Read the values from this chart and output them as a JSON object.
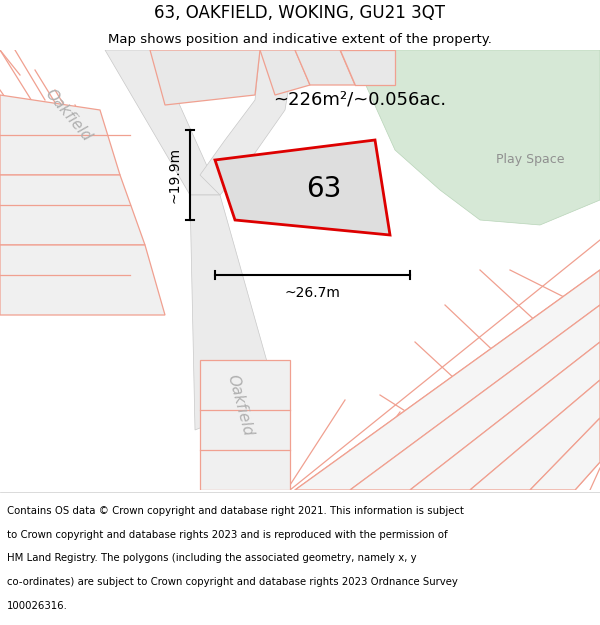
{
  "title": "63, OAKFIELD, WOKING, GU21 3QT",
  "subtitle": "Map shows position and indicative extent of the property.",
  "area_label": "~226m²/~0.056ac.",
  "width_label": "~26.7m",
  "height_label": "~19.9m",
  "plot_number": "63",
  "play_space_label": "Play Space",
  "oakfield_label_upper": "Oakfield",
  "oakfield_label_lower": "Oakfield",
  "footer_lines": [
    "Contains OS data © Crown copyright and database right 2021. This information is subject",
    "to Crown copyright and database rights 2023 and is reproduced with the permission of",
    "HM Land Registry. The polygons (including the associated geometry, namely x, y",
    "co-ordinates) are subject to Crown copyright and database rights 2023 Ordnance Survey",
    "100026316."
  ],
  "map_bg": "#ffffff",
  "green_color": "#d6e8d6",
  "road_color": "#ebebeb",
  "plot_fill": "#e2e2e2",
  "plot_edge": "#dd0000",
  "cad_color": "#f0a090",
  "gray_line": "#c8c8c8",
  "dim_color": "#111111",
  "road_label_color": "#b0b0b0",
  "play_space_color": "#909090"
}
